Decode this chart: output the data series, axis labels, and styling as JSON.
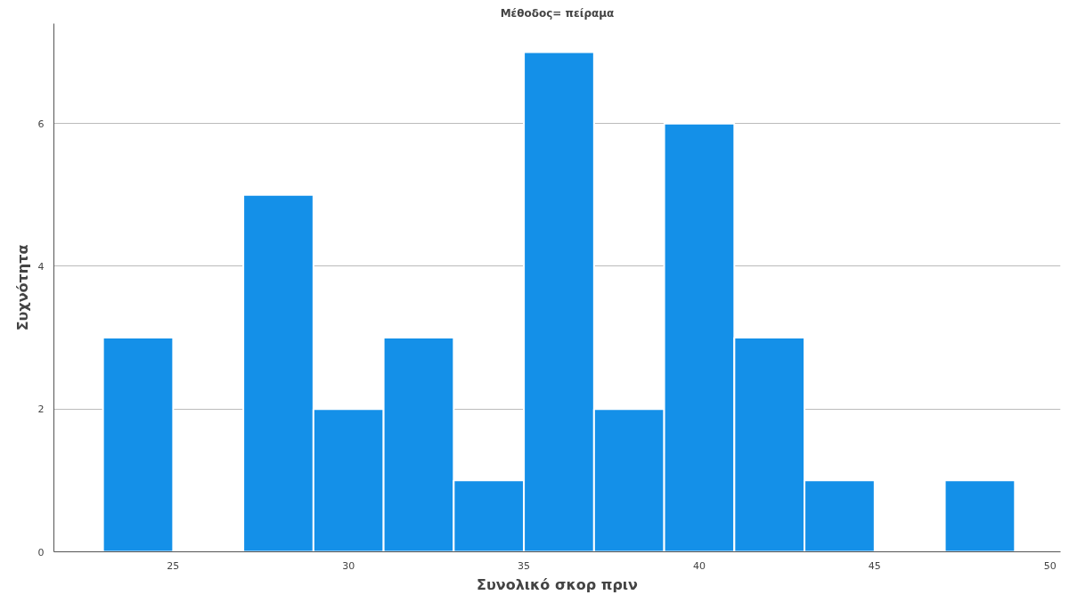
{
  "chart_data": {
    "type": "histogram",
    "title": "Μέθοδος= πείραμα",
    "xlabel": "Συνολικό σκορ πριν",
    "ylabel": "Συχνότητα",
    "bins": [
      23,
      25,
      27,
      29,
      31,
      33,
      35,
      37,
      39,
      41,
      43,
      45,
      47,
      49
    ],
    "values": [
      3,
      0,
      5,
      2,
      3,
      1,
      7,
      2,
      6,
      3,
      1,
      0,
      1
    ],
    "color": "#1490e8",
    "xlim": [
      21.6,
      50.3
    ],
    "xticks": [
      25,
      30,
      35,
      40,
      45,
      50
    ],
    "ylim": [
      0,
      7.4
    ],
    "yticks": [
      0,
      2,
      4,
      6
    ],
    "grid": "y"
  }
}
